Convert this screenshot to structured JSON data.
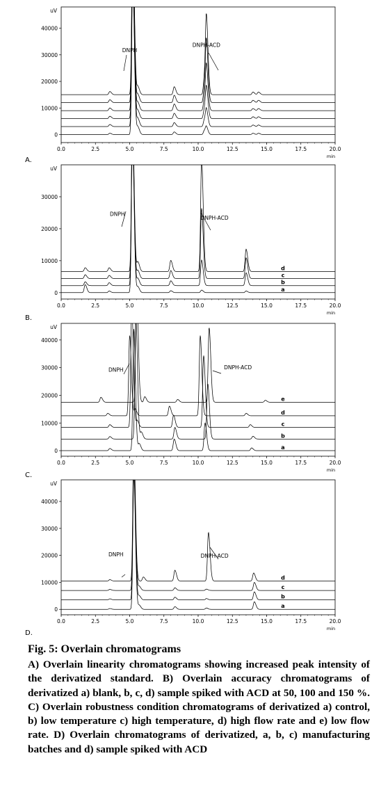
{
  "chart_data": [
    {
      "type": "line",
      "panel_label": "A.",
      "ylabel": "uV",
      "xlabel": "min",
      "xlim": [
        0,
        20
      ],
      "ylim": [
        -3000,
        48000
      ],
      "x_ticks": [
        "0.0",
        "2.5",
        "5.0",
        "7.5",
        "10.0",
        "12.5",
        "15.0",
        "17.5",
        "20.0"
      ],
      "y_ticks": [
        0,
        10000,
        20000,
        30000,
        40000
      ],
      "y_tick_labels": [
        "0",
        "10000",
        "20000",
        "30000",
        "40000"
      ],
      "annotations": [
        {
          "text": "DNPH",
          "x": 5.0,
          "y": 31000
        },
        {
          "text": "DNPH-ACD",
          "x": 10.6,
          "y": 33000
        }
      ],
      "series": [
        {
          "baseline": 0,
          "peaks": [
            [
              3.55,
              500
            ],
            [
              5.22,
              60000
            ],
            [
              5.6,
              2800
            ],
            [
              8.25,
              1000
            ],
            [
              10.45,
              1500
            ],
            [
              10.6,
              2600
            ],
            [
              14.0,
              500
            ],
            [
              14.4,
              500
            ]
          ]
        },
        {
          "baseline": 3000,
          "peaks": [
            [
              3.55,
              800
            ],
            [
              5.22,
              60000
            ],
            [
              5.6,
              3000
            ],
            [
              8.25,
              1500
            ],
            [
              10.45,
              2500
            ],
            [
              10.6,
              6000
            ],
            [
              14.0,
              600
            ],
            [
              14.4,
              600
            ]
          ]
        },
        {
          "baseline": 6000,
          "peaks": [
            [
              3.55,
              900
            ],
            [
              5.22,
              60000
            ],
            [
              5.6,
              3000
            ],
            [
              8.25,
              2000
            ],
            [
              10.45,
              3500
            ],
            [
              10.6,
              11000
            ],
            [
              14.0,
              700
            ],
            [
              14.4,
              700
            ]
          ]
        },
        {
          "baseline": 9000,
          "peaks": [
            [
              3.55,
              1000
            ],
            [
              5.22,
              60000
            ],
            [
              5.6,
              3000
            ],
            [
              8.25,
              2500
            ],
            [
              10.45,
              4500
            ],
            [
              10.6,
              16000
            ],
            [
              14.0,
              800
            ],
            [
              14.4,
              800
            ]
          ]
        },
        {
          "baseline": 12000,
          "peaks": [
            [
              3.55,
              1100
            ],
            [
              5.22,
              60000
            ],
            [
              5.6,
              3000
            ],
            [
              8.25,
              2800
            ],
            [
              10.45,
              5500
            ],
            [
              10.6,
              22000
            ],
            [
              14.0,
              900
            ],
            [
              14.4,
              900
            ]
          ]
        },
        {
          "baseline": 15000,
          "peaks": [
            [
              3.55,
              1200
            ],
            [
              5.22,
              60000
            ],
            [
              5.6,
              3000
            ],
            [
              8.25,
              3000
            ],
            [
              10.45,
              6000
            ],
            [
              10.6,
              28000
            ],
            [
              14.0,
              1000
            ],
            [
              14.4,
              1000
            ]
          ]
        }
      ]
    },
    {
      "type": "line",
      "panel_label": "B.",
      "ylabel": "uV",
      "xlabel": "min",
      "xlim": [
        0,
        20
      ],
      "ylim": [
        -2000,
        40000
      ],
      "x_ticks": [
        "0.0",
        "2.5",
        "5.0",
        "7.5",
        "10.0",
        "12.5",
        "15.0",
        "17.5",
        "20.0"
      ],
      "y_ticks": [
        0,
        10000,
        20000,
        30000
      ],
      "y_tick_labels": [
        "0",
        "10000",
        "20000",
        "30000"
      ],
      "annotations": [
        {
          "text": "DNPH",
          "x": 4.1,
          "y": 24000
        },
        {
          "text": "DNPH-ACD",
          "x": 11.2,
          "y": 22800
        }
      ],
      "series": [
        {
          "name": "a",
          "baseline": 0,
          "peaks": [
            [
              1.75,
              2500
            ],
            [
              3.5,
              500
            ],
            [
              5.2,
              50000
            ],
            [
              5.6,
              1800
            ],
            [
              8.0,
              600
            ],
            [
              10.25,
              800
            ],
            [
              13.5,
              500
            ]
          ]
        },
        {
          "name": "b",
          "baseline": 2200,
          "peaks": [
            [
              1.75,
              1200
            ],
            [
              3.5,
              900
            ],
            [
              5.2,
              50000
            ],
            [
              5.6,
              2200
            ],
            [
              8.0,
              1500
            ],
            [
              10.25,
              8000
            ],
            [
              13.5,
              4000
            ]
          ]
        },
        {
          "name": "c",
          "baseline": 4400,
          "peaks": [
            [
              1.75,
              1200
            ],
            [
              3.5,
              1000
            ],
            [
              5.2,
              50000
            ],
            [
              5.6,
              2500
            ],
            [
              8.0,
              2500
            ],
            [
              10.25,
              22000
            ],
            [
              13.5,
              6500
            ]
          ]
        },
        {
          "name": "d",
          "baseline": 6600,
          "peaks": [
            [
              1.75,
              1200
            ],
            [
              3.5,
              1200
            ],
            [
              5.2,
              50000
            ],
            [
              5.6,
              3000
            ],
            [
              8.0,
              3500
            ],
            [
              10.25,
              35000
            ],
            [
              13.5,
              7000
            ]
          ]
        }
      ]
    },
    {
      "type": "line",
      "panel_label": "C.",
      "ylabel": "uV",
      "xlabel": "min",
      "xlim": [
        0,
        20
      ],
      "ylim": [
        -2000,
        46000
      ],
      "x_ticks": [
        "0.0",
        "2.5",
        "5.0",
        "7.5",
        "10.0",
        "12.5",
        "15.0",
        "17.5",
        "20.0"
      ],
      "y_ticks": [
        0,
        10000,
        20000,
        30000,
        40000
      ],
      "y_tick_labels": [
        "0",
        "10000",
        "20000",
        "30000",
        "40000"
      ],
      "annotations": [
        {
          "text": "DNPH",
          "x": 4.0,
          "y": 28500
        },
        {
          "text": "DNPH-ACD",
          "x": 12.9,
          "y": 29400
        }
      ],
      "series": [
        {
          "name": "a",
          "baseline": 0,
          "peaks": [
            [
              3.55,
              800
            ],
            [
              5.3,
              44000
            ],
            [
              5.7,
              2500
            ],
            [
              8.25,
              4200
            ],
            [
              10.5,
              10000
            ],
            [
              13.9,
              1000
            ]
          ]
        },
        {
          "name": "b",
          "baseline": 4200,
          "peaks": [
            [
              3.55,
              900
            ],
            [
              5.45,
              44000
            ],
            [
              5.85,
              2500
            ],
            [
              8.3,
              4200
            ],
            [
              10.7,
              20000
            ],
            [
              14.0,
              1000
            ]
          ]
        },
        {
          "name": "c",
          "baseline": 8400,
          "peaks": [
            [
              3.55,
              1000
            ],
            [
              5.15,
              44000
            ],
            [
              5.55,
              2500
            ],
            [
              8.2,
              4400
            ],
            [
              10.4,
              26000
            ],
            [
              13.8,
              1000
            ]
          ]
        },
        {
          "name": "d",
          "baseline": 12600,
          "peaks": [
            [
              3.4,
              900
            ],
            [
              5.0,
              29000
            ],
            [
              5.4,
              2500
            ],
            [
              7.9,
              3500
            ],
            [
              10.15,
              29000
            ],
            [
              13.5,
              900
            ]
          ]
        },
        {
          "name": "e",
          "baseline": 17500,
          "peaks": [
            [
              2.9,
              1800
            ],
            [
              5.5,
              44000
            ],
            [
              6.1,
              2000
            ],
            [
              8.5,
              1000
            ],
            [
              10.8,
              27000
            ],
            [
              14.9,
              700
            ]
          ]
        }
      ]
    },
    {
      "type": "line",
      "panel_label": "D.",
      "ylabel": "uV",
      "xlabel": "min",
      "xlim": [
        0,
        20
      ],
      "ylim": [
        -2000,
        48000
      ],
      "x_ticks": [
        "0.0",
        "2.5",
        "5.0",
        "7.5",
        "10.0",
        "12.5",
        "15.0",
        "17.5",
        "20.0"
      ],
      "y_ticks": [
        0,
        10000,
        20000,
        30000,
        40000
      ],
      "y_tick_labels": [
        "0",
        "10000",
        "20000",
        "30000",
        "40000"
      ],
      "annotations": [
        {
          "text": "DNPH",
          "x": 4.0,
          "y": 19600
        },
        {
          "text": "DNPH-ACD",
          "x": 11.2,
          "y": 19100
        }
      ],
      "series": [
        {
          "name": "a",
          "baseline": 0,
          "peaks": [
            [
              3.55,
              300
            ],
            [
              5.3,
              50000
            ],
            [
              5.7,
              1500
            ],
            [
              8.3,
              1000
            ],
            [
              10.6,
              500
            ],
            [
              14.1,
              2800
            ]
          ]
        },
        {
          "name": "b",
          "baseline": 3500,
          "peaks": [
            [
              3.55,
              400
            ],
            [
              5.3,
              50000
            ],
            [
              5.7,
              1500
            ],
            [
              8.3,
              1000
            ],
            [
              10.6,
              500
            ],
            [
              14.1,
              3000
            ]
          ]
        },
        {
          "name": "c",
          "baseline": 7000,
          "peaks": [
            [
              3.55,
              400
            ],
            [
              5.3,
              50000
            ],
            [
              5.7,
              1500
            ],
            [
              8.3,
              1000
            ],
            [
              10.6,
              500
            ],
            [
              14.1,
              3000
            ]
          ]
        },
        {
          "name": "d",
          "baseline": 10500,
          "peaks": [
            [
              3.55,
              500
            ],
            [
              5.3,
              50000
            ],
            [
              6.0,
              1500
            ],
            [
              8.3,
              4000
            ],
            [
              10.75,
              18000
            ],
            [
              14.05,
              3000
            ]
          ]
        }
      ]
    }
  ],
  "caption": {
    "title": "Fig. 5: Overlain chromatograms",
    "description": "A) Overlain linearity chromatograms showing increased peak intensity of the derivatized standard. B) Overlain accuracy chromatograms of derivatized a) blank, b, c, d) sample spiked with ACD at 50, 100 and 150 %. C) Overlain robustness condition chromatograms of derivatized a) control, b) low temperature c) high temperature, d) high flow rate and e) low flow rate. D) Overlain chromatograms of derivatized, a, b, c) manufacturing batches and d) sample spiked with ACD"
  }
}
